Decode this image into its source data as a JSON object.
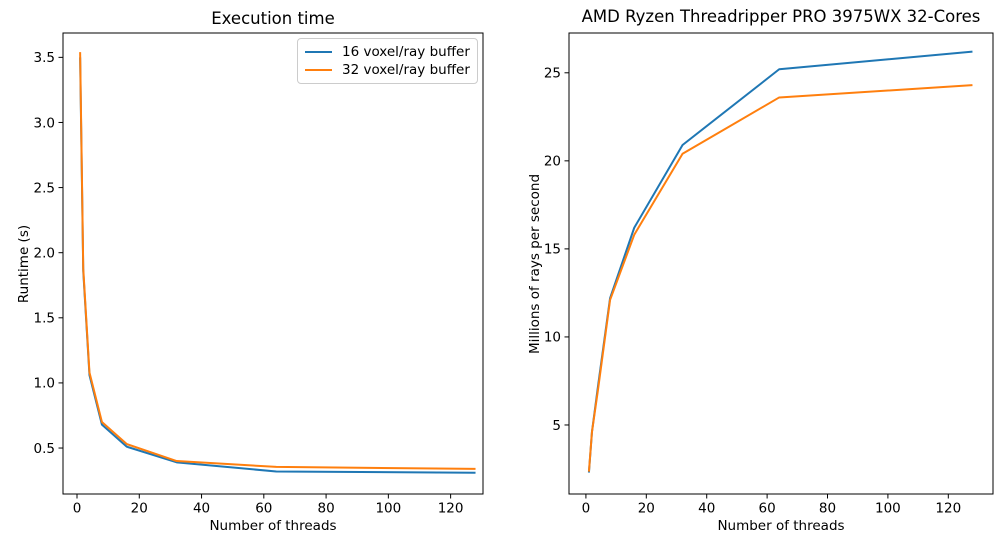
{
  "chart_data": [
    {
      "type": "line",
      "title": "Execution time",
      "xlabel": "Number of threads",
      "ylabel": "Runtime (s)",
      "x": [
        1,
        2,
        4,
        8,
        16,
        32,
        64,
        128
      ],
      "series": [
        {
          "name": "16 voxel/ray buffer",
          "color": "#1f77b4",
          "values": [
            3.5,
            1.86,
            1.06,
            0.68,
            0.51,
            0.39,
            0.32,
            0.31
          ]
        },
        {
          "name": "32 voxel/ray buffer",
          "color": "#ff7f0e",
          "values": [
            3.54,
            1.88,
            1.08,
            0.7,
            0.53,
            0.4,
            0.355,
            0.34
          ]
        }
      ],
      "xlim": [
        -4.5,
        130.4
      ],
      "ylim": [
        0.147,
        3.687
      ],
      "xticks": [
        0,
        20,
        40,
        60,
        80,
        100,
        120
      ],
      "xtick_labels": [
        "0",
        "20",
        "40",
        "60",
        "80",
        "100",
        "120"
      ],
      "yticks": [
        0.5,
        1.0,
        1.5,
        2.0,
        2.5,
        3.0,
        3.5
      ],
      "ytick_labels": [
        "0.5",
        "1.0",
        "1.5",
        "2.0",
        "2.5",
        "3.0",
        "3.5"
      ],
      "grid": false,
      "legend": {
        "position": "upper right",
        "entries": [
          "16 voxel/ray buffer",
          "32 voxel/ray buffer"
        ]
      }
    },
    {
      "type": "line",
      "title": "AMD Ryzen Threadripper PRO 3975WX 32-Cores",
      "xlabel": "Number of threads",
      "ylabel": "Millions of rays per second",
      "x": [
        1,
        2,
        4,
        8,
        16,
        32,
        64,
        128
      ],
      "series": [
        {
          "name": "16 voxel/ray buffer",
          "color": "#1f77b4",
          "values": [
            2.3,
            4.6,
            7.2,
            12.2,
            16.2,
            20.9,
            25.2,
            26.2
          ]
        },
        {
          "name": "32 voxel/ray buffer",
          "color": "#ff7f0e",
          "values": [
            2.35,
            4.6,
            7.0,
            12.1,
            15.8,
            20.4,
            23.6,
            24.3
          ]
        }
      ],
      "xlim": [
        -5.6,
        134.8
      ],
      "ylim": [
        1.08,
        27.26
      ],
      "xticks": [
        0,
        20,
        40,
        60,
        80,
        100,
        120
      ],
      "xtick_labels": [
        "0",
        "20",
        "40",
        "60",
        "80",
        "100",
        "120"
      ],
      "yticks": [
        5,
        10,
        15,
        20,
        25
      ],
      "ytick_labels": [
        "5",
        "10",
        "15",
        "20",
        "25"
      ],
      "grid": false,
      "legend": null
    }
  ],
  "colors": {
    "background": "#ffffff",
    "axis": "#000000",
    "tick_label": "#000000",
    "legend_border": "#cccccc",
    "series_blue": "#1f77b4",
    "series_orange": "#ff7f0e"
  }
}
